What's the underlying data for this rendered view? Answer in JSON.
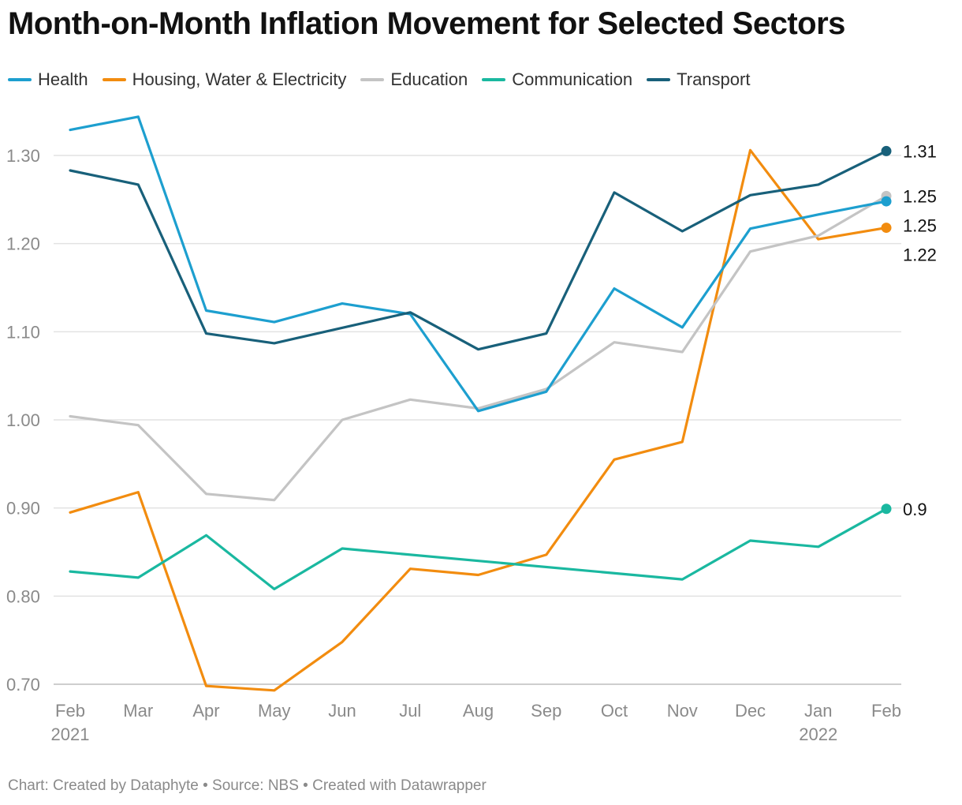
{
  "title": "Month-on-Month Inflation Movement for Selected Sectors",
  "footer": {
    "text": "Chart: Created by Dataphyte • Source: NBS • Created with Datawrapper"
  },
  "chart_data": {
    "type": "line",
    "title": "Month-on-Month Inflation Movement for Selected Sectors",
    "xlabel": "",
    "ylabel": "",
    "categories": [
      "Feb",
      "Mar",
      "Apr",
      "May",
      "Jun",
      "Jul",
      "Aug",
      "Sep",
      "Oct",
      "Nov",
      "Dec",
      "Jan",
      "Feb"
    ],
    "category_sublabels": [
      "2021",
      "",
      "",
      "",
      "",
      "",
      "",
      "",
      "",
      "",
      "",
      "2022",
      ""
    ],
    "ylim": [
      0.7,
      1.3
    ],
    "yticks": [
      0.7,
      0.8,
      0.9,
      1.0,
      1.1,
      1.2,
      1.3
    ],
    "ytick_labels": [
      "0.70",
      "0.80",
      "0.90",
      "1.00",
      "1.10",
      "1.20",
      "1.30"
    ],
    "grid": true,
    "legend_position": "top-left",
    "series": [
      {
        "name": "Health",
        "color": "#1d9fcf",
        "values": [
          1.329,
          1.344,
          1.124,
          1.111,
          1.132,
          1.12,
          1.01,
          1.032,
          1.149,
          1.105,
          1.217,
          1.233,
          1.248
        ],
        "end_label": "1.25"
      },
      {
        "name": "Housing, Water & Electricity",
        "color": "#f28c0f",
        "values": [
          0.895,
          0.918,
          0.698,
          0.693,
          0.748,
          0.831,
          0.824,
          0.847,
          0.955,
          0.975,
          1.306,
          1.205,
          1.218
        ],
        "end_label": "1.22"
      },
      {
        "name": "Education",
        "color": "#c4c4c4",
        "values": [
          1.004,
          0.994,
          0.916,
          0.909,
          1.0,
          1.023,
          1.013,
          1.035,
          1.088,
          1.077,
          1.191,
          1.209,
          1.254
        ],
        "end_label": "1.25"
      },
      {
        "name": "Communication",
        "color": "#1ab8a0",
        "values": [
          0.828,
          0.821,
          0.869,
          0.808,
          0.854,
          null,
          null,
          null,
          null,
          0.819,
          0.863,
          0.856,
          0.899
        ],
        "end_label": "0.9"
      },
      {
        "name": "Transport",
        "color": "#18607a",
        "values": [
          1.283,
          1.267,
          1.098,
          1.087,
          null,
          1.122,
          1.08,
          1.098,
          1.258,
          1.214,
          1.255,
          1.267,
          1.305
        ],
        "end_label": "1.31"
      }
    ]
  }
}
